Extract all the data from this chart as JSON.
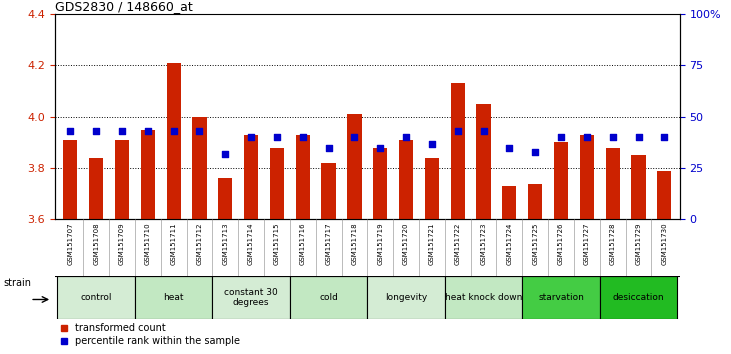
{
  "title": "GDS2830 / 148660_at",
  "samples": [
    "GSM151707",
    "GSM151708",
    "GSM151709",
    "GSM151710",
    "GSM151711",
    "GSM151712",
    "GSM151713",
    "GSM151714",
    "GSM151715",
    "GSM151716",
    "GSM151717",
    "GSM151718",
    "GSM151719",
    "GSM151720",
    "GSM151721",
    "GSM151722",
    "GSM151723",
    "GSM151724",
    "GSM151725",
    "GSM151726",
    "GSM151727",
    "GSM151728",
    "GSM151729",
    "GSM151730"
  ],
  "bar_values": [
    3.91,
    3.84,
    3.91,
    3.95,
    4.21,
    4.0,
    3.76,
    3.93,
    3.88,
    3.93,
    3.82,
    4.01,
    3.88,
    3.91,
    3.84,
    4.13,
    4.05,
    3.73,
    3.74,
    3.9,
    3.93,
    3.88,
    3.85,
    3.79
  ],
  "blue_percentiles": [
    43,
    43,
    43,
    43,
    43,
    43,
    32,
    40,
    40,
    40,
    35,
    40,
    35,
    40,
    37,
    43,
    43,
    35,
    33,
    40,
    40,
    40,
    40,
    40
  ],
  "groups": [
    {
      "label": "control",
      "start": 0,
      "end": 3,
      "color": "#d4ecd4"
    },
    {
      "label": "heat",
      "start": 3,
      "end": 6,
      "color": "#c2e8c2"
    },
    {
      "label": "constant 30\ndegrees",
      "start": 6,
      "end": 9,
      "color": "#d4ecd4"
    },
    {
      "label": "cold",
      "start": 9,
      "end": 12,
      "color": "#c2e8c2"
    },
    {
      "label": "longevity",
      "start": 12,
      "end": 15,
      "color": "#d4ecd4"
    },
    {
      "label": "heat knock down",
      "start": 15,
      "end": 18,
      "color": "#c2e8c2"
    },
    {
      "label": "starvation",
      "start": 18,
      "end": 21,
      "color": "#44cc44"
    },
    {
      "label": "desiccation",
      "start": 21,
      "end": 24,
      "color": "#22bb22"
    }
  ],
  "bar_color": "#cc2200",
  "blue_color": "#0000cc",
  "ylim": [
    3.6,
    4.4
  ],
  "y2lim": [
    0,
    100
  ],
  "y2ticks": [
    0,
    25,
    50,
    75,
    100
  ],
  "y2ticklabels": [
    "0",
    "25",
    "50",
    "75",
    "100%"
  ],
  "yticks": [
    3.6,
    3.8,
    4.0,
    4.2,
    4.4
  ],
  "background_color": "#ffffff",
  "tick_color_left": "#cc2200",
  "tick_color_right": "#0000cc",
  "sample_bg_color": "#cccccc",
  "strain_label": "strain"
}
